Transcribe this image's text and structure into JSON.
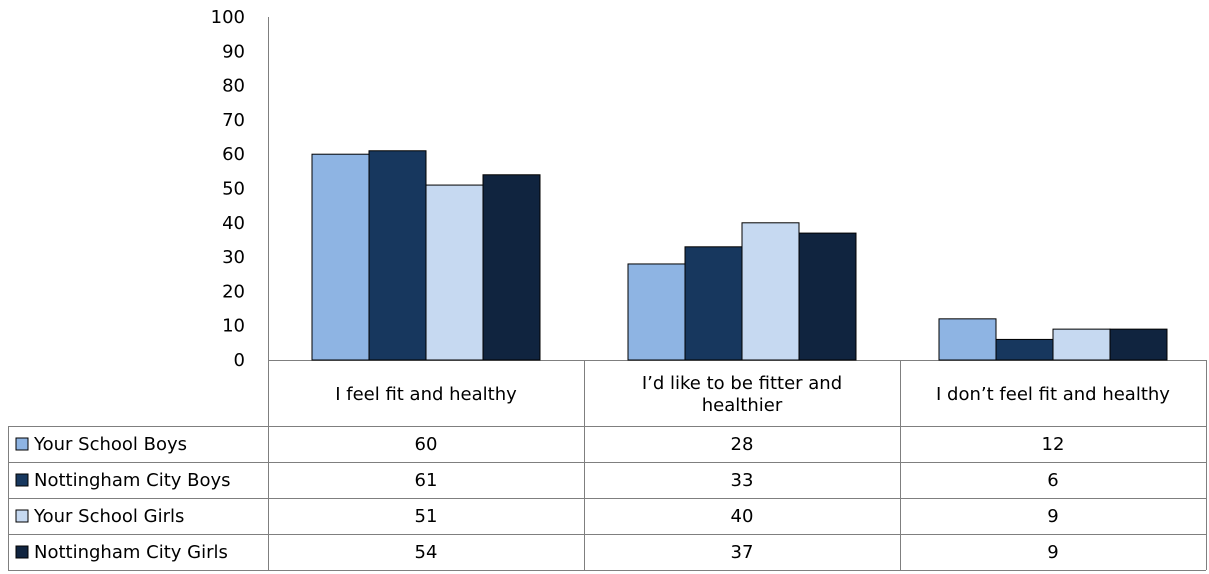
{
  "chart_data": {
    "type": "bar",
    "title": "",
    "xlabel": "",
    "ylabel": "",
    "ylim": [
      0,
      100
    ],
    "yticks": [
      0,
      10,
      20,
      30,
      40,
      50,
      60,
      70,
      80,
      90,
      100
    ],
    "grid": false,
    "legend": "data-table",
    "categories": [
      "I feel fit and healthy",
      "I’d like to be fitter and healthier",
      "I don’t feel fit and healthy"
    ],
    "category_lines": [
      [
        "I feel fit and healthy"
      ],
      [
        "I’d like to be fitter and",
        "healthier"
      ],
      [
        "I don’t feel fit and healthy"
      ]
    ],
    "series": [
      {
        "name": "Your School Boys",
        "values": [
          60,
          28,
          12
        ],
        "color": "#8eb4e3"
      },
      {
        "name": "Nottingham City Boys",
        "values": [
          61,
          33,
          6
        ],
        "color": "#17375e"
      },
      {
        "name": "Your School Girls",
        "values": [
          51,
          40,
          9
        ],
        "color": "#c6d9f1"
      },
      {
        "name": "Nottingham City Girls",
        "values": [
          54,
          37,
          9
        ],
        "color": "#10243f"
      }
    ]
  }
}
